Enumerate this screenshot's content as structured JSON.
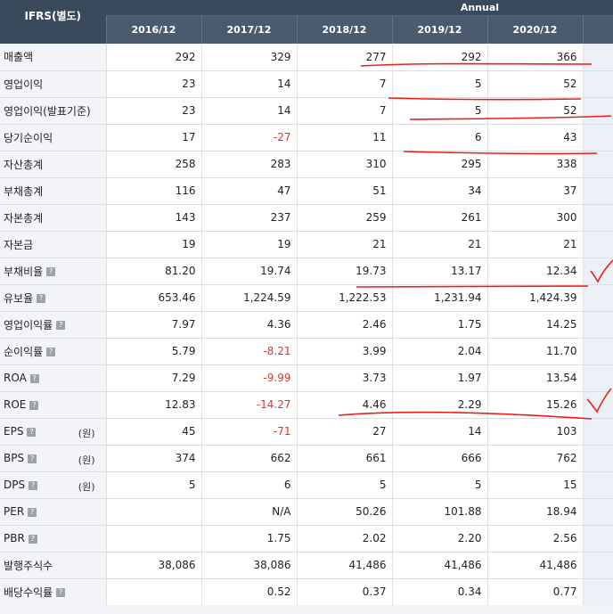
{
  "header": {
    "label": "IFRS(별도)",
    "period": "Annual",
    "years": [
      "2016/12",
      "2017/12",
      "2018/12",
      "2019/12",
      "2020/12"
    ]
  },
  "help_icon_glyph": "?",
  "rows": [
    {
      "label": "매출액",
      "help": false,
      "unit": "",
      "values": [
        "292",
        "329",
        "277",
        "292",
        "366"
      ],
      "neg": [
        false,
        false,
        false,
        false,
        false
      ]
    },
    {
      "label": "영업이익",
      "help": false,
      "unit": "",
      "values": [
        "23",
        "14",
        "7",
        "5",
        "52"
      ],
      "neg": [
        false,
        false,
        false,
        false,
        false
      ]
    },
    {
      "label": "영업이익(발표기준)",
      "help": false,
      "unit": "",
      "values": [
        "23",
        "14",
        "7",
        "5",
        "52"
      ],
      "neg": [
        false,
        false,
        false,
        false,
        false
      ]
    },
    {
      "label": "당기순이익",
      "help": false,
      "unit": "",
      "values": [
        "17",
        "-27",
        "11",
        "6",
        "43"
      ],
      "neg": [
        false,
        true,
        false,
        false,
        false
      ]
    },
    {
      "label": "자산총계",
      "help": false,
      "unit": "",
      "values": [
        "258",
        "283",
        "310",
        "295",
        "338"
      ],
      "neg": [
        false,
        false,
        false,
        false,
        false
      ]
    },
    {
      "label": "부채총계",
      "help": false,
      "unit": "",
      "values": [
        "116",
        "47",
        "51",
        "34",
        "37"
      ],
      "neg": [
        false,
        false,
        false,
        false,
        false
      ]
    },
    {
      "label": "자본총계",
      "help": false,
      "unit": "",
      "values": [
        "143",
        "237",
        "259",
        "261",
        "300"
      ],
      "neg": [
        false,
        false,
        false,
        false,
        false
      ]
    },
    {
      "label": "자본금",
      "help": false,
      "unit": "",
      "values": [
        "19",
        "19",
        "21",
        "21",
        "21"
      ],
      "neg": [
        false,
        false,
        false,
        false,
        false
      ]
    },
    {
      "label": "부채비율",
      "help": true,
      "unit": "",
      "values": [
        "81.20",
        "19.74",
        "19.73",
        "13.17",
        "12.34"
      ],
      "neg": [
        false,
        false,
        false,
        false,
        false
      ]
    },
    {
      "label": "유보율",
      "help": true,
      "unit": "",
      "values": [
        "653.46",
        "1,224.59",
        "1,222.53",
        "1,231.94",
        "1,424.39"
      ],
      "neg": [
        false,
        false,
        false,
        false,
        false
      ]
    },
    {
      "label": "영업이익률",
      "help": true,
      "unit": "",
      "values": [
        "7.97",
        "4.36",
        "2.46",
        "1.75",
        "14.25"
      ],
      "neg": [
        false,
        false,
        false,
        false,
        false
      ]
    },
    {
      "label": "순이익률",
      "help": true,
      "unit": "",
      "values": [
        "5.79",
        "-8.21",
        "3.99",
        "2.04",
        "11.70"
      ],
      "neg": [
        false,
        true,
        false,
        false,
        false
      ]
    },
    {
      "label": "ROA",
      "help": true,
      "unit": "",
      "values": [
        "7.29",
        "-9.99",
        "3.73",
        "1.97",
        "13.54"
      ],
      "neg": [
        false,
        true,
        false,
        false,
        false
      ]
    },
    {
      "label": "ROE",
      "help": true,
      "unit": "",
      "values": [
        "12.83",
        "-14.27",
        "4.46",
        "2.29",
        "15.26"
      ],
      "neg": [
        false,
        true,
        false,
        false,
        false
      ]
    },
    {
      "label": "EPS",
      "help": true,
      "unit": "(원)",
      "values": [
        "45",
        "-71",
        "27",
        "14",
        "103"
      ],
      "neg": [
        false,
        true,
        false,
        false,
        false
      ]
    },
    {
      "label": "BPS",
      "help": true,
      "unit": "(원)",
      "values": [
        "374",
        "662",
        "661",
        "666",
        "762"
      ],
      "neg": [
        false,
        false,
        false,
        false,
        false
      ]
    },
    {
      "label": "DPS",
      "help": true,
      "unit": "(원)",
      "values": [
        "5",
        "6",
        "5",
        "5",
        "15"
      ],
      "neg": [
        false,
        false,
        false,
        false,
        false
      ]
    },
    {
      "label": "PER",
      "help": true,
      "unit": "",
      "values": [
        "",
        "N/A",
        "50.26",
        "101.88",
        "18.94"
      ],
      "neg": [
        false,
        false,
        false,
        false,
        false
      ]
    },
    {
      "label": "PBR",
      "help": true,
      "unit": "",
      "values": [
        "",
        "1.75",
        "2.02",
        "2.20",
        "2.56"
      ],
      "neg": [
        false,
        false,
        false,
        false,
        false
      ]
    },
    {
      "label": "발행주식수",
      "help": false,
      "unit": "",
      "values": [
        "38,086",
        "38,086",
        "41,486",
        "41,486",
        "41,486"
      ],
      "neg": [
        false,
        false,
        false,
        false,
        false
      ]
    },
    {
      "label": "배당수익률",
      "help": true,
      "unit": "",
      "values": [
        "",
        "0.52",
        "0.37",
        "0.34",
        "0.77"
      ],
      "neg": [
        false,
        false,
        false,
        false,
        false
      ]
    }
  ],
  "colors": {
    "header_dark": "#3a4a5d",
    "header_years": "#4a5b6f",
    "negative": "#e0322f",
    "annotation": "#e8201c"
  }
}
